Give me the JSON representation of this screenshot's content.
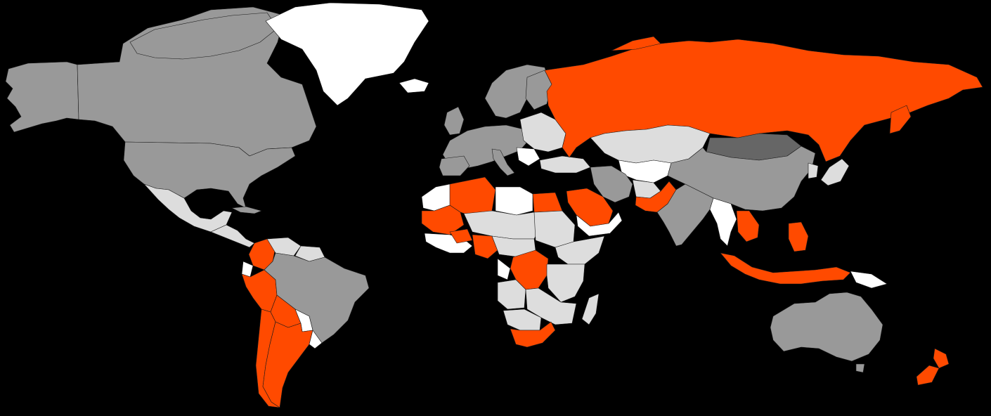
{
  "map": {
    "background": "#000000",
    "palette": {
      "highlight": "#ff4a00",
      "gray": "#999999",
      "light_gray": "#dddddd",
      "white": "#ffffff",
      "dark_gray": "#666666"
    }
  }
}
